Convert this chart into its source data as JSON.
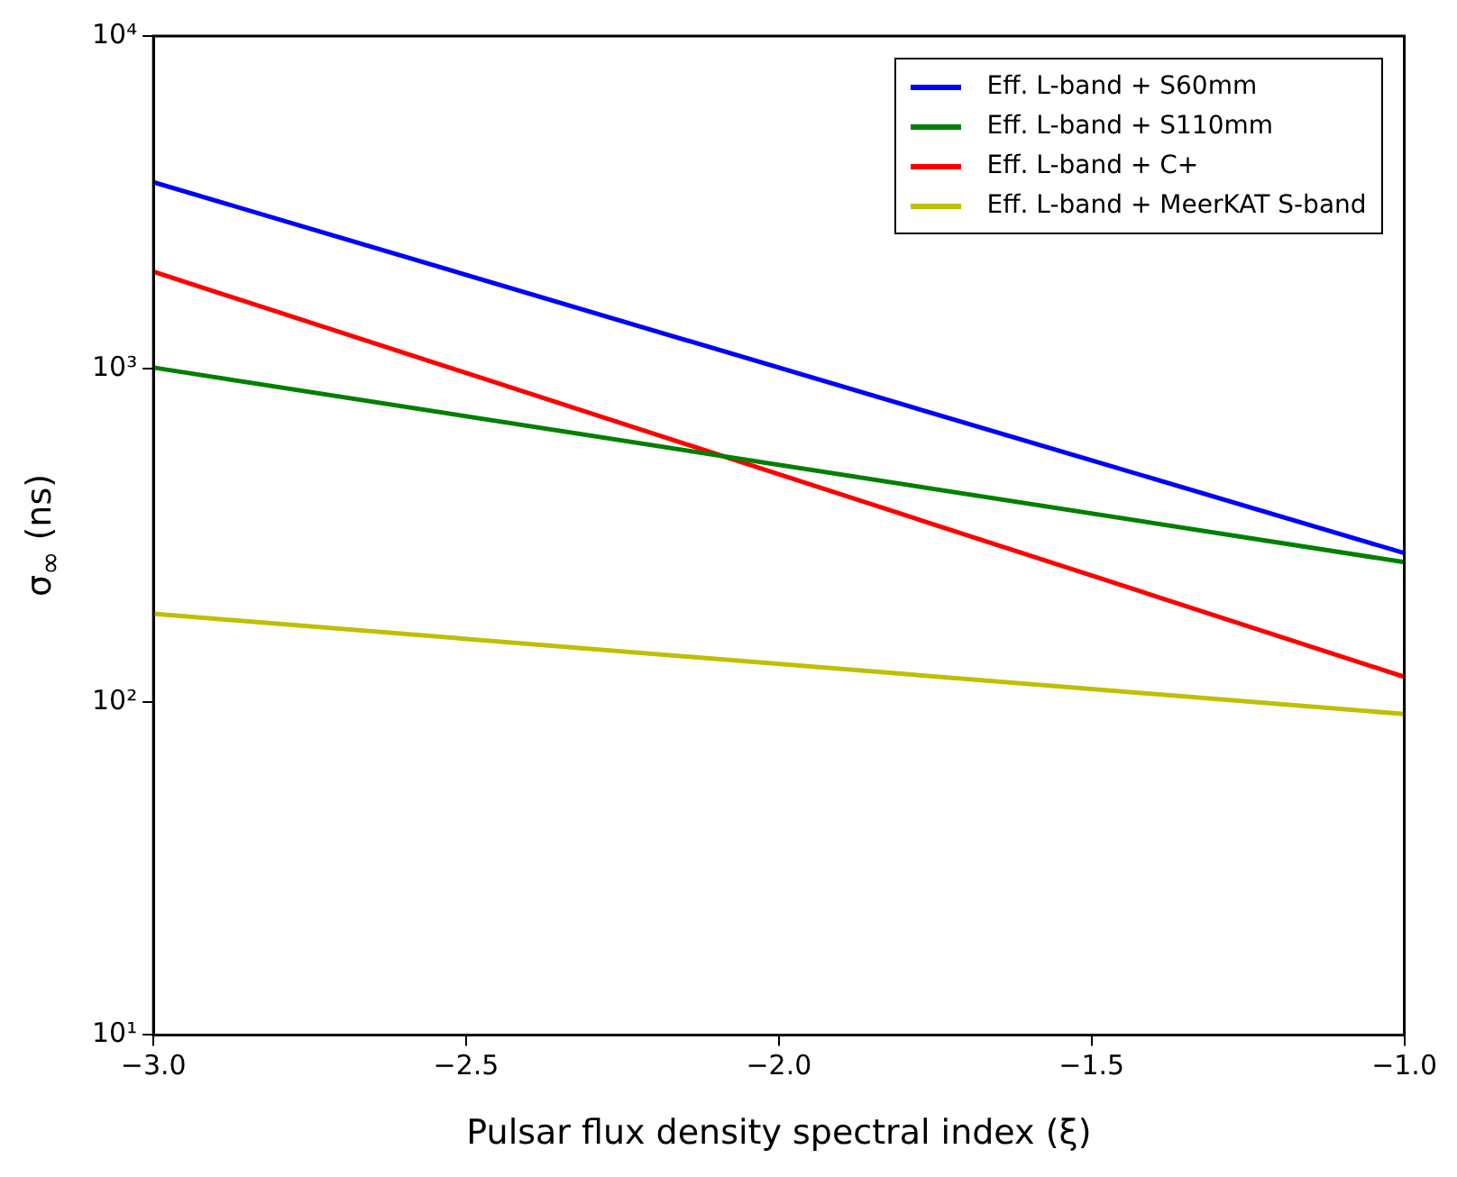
{
  "chart_data": {
    "type": "line",
    "xlabel": "Pulsar flux density spectral index (ξ)",
    "ylabel": "σ$_{∞}$ (ns)",
    "x": [
      -3.0,
      -1.0
    ],
    "series": [
      {
        "name": "Eff. L-band + S60mm",
        "color": "#0000ff",
        "values": [
          3640,
          280
        ]
      },
      {
        "name": "Eff. L-band + S110mm",
        "color": "#008000",
        "values": [
          1010,
          263
        ]
      },
      {
        "name": "Eff. L-band + C+",
        "color": "#ff0000",
        "values": [
          1960,
          119
        ]
      },
      {
        "name": "Eff. L-band + MeerKAT S-band",
        "color": "#bfbf00",
        "values": [
          184,
          92
        ]
      }
    ],
    "xlim": [
      -3.0,
      -1.0
    ],
    "xticks": [
      {
        "value": -3,
        "label": "−3.0"
      },
      {
        "value": -2.5,
        "label": "−2.5"
      },
      {
        "value": -2,
        "label": "−2.0"
      },
      {
        "value": -1.5,
        "label": "−1.5"
      },
      {
        "value": -1,
        "label": "−1.0"
      }
    ],
    "ylim": [
      10,
      10000
    ],
    "yticks": [
      {
        "value": 10,
        "label": "10¹"
      },
      {
        "value": 100,
        "label": "10²"
      },
      {
        "value": 1000,
        "label": "10³"
      },
      {
        "value": 10000,
        "label": "10⁴"
      }
    ],
    "log": "y",
    "grid": false,
    "legend": "top right",
    "marker": "none",
    "line_style": "solid"
  }
}
